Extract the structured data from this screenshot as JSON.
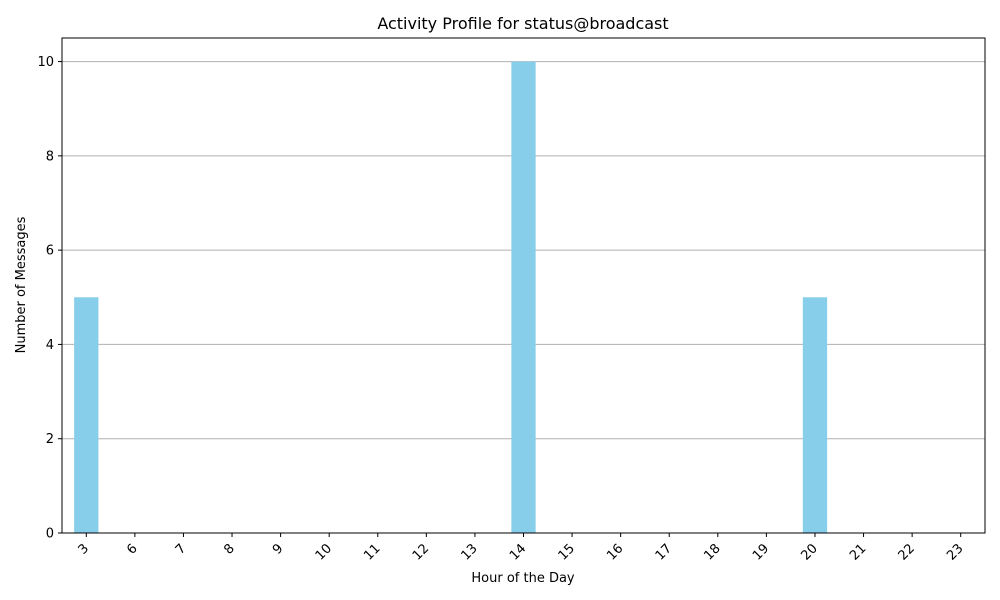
{
  "chart_data": {
    "type": "bar",
    "title": "Activity Profile for status@broadcast",
    "xlabel": "Hour of the Day",
    "ylabel": "Number of Messages",
    "categories": [
      "3",
      "6",
      "7",
      "8",
      "9",
      "10",
      "11",
      "12",
      "13",
      "14",
      "15",
      "16",
      "17",
      "18",
      "19",
      "20",
      "21",
      "22",
      "23"
    ],
    "values": [
      5,
      0,
      0,
      0,
      0,
      0,
      0,
      0,
      0,
      10,
      0,
      0,
      0,
      0,
      0,
      5,
      0,
      0,
      0
    ],
    "ylim": [
      0,
      10.5
    ],
    "yticks": [
      0,
      2,
      4,
      6,
      8,
      10
    ],
    "grid": "y-axis",
    "bar_color": "#87ceeb",
    "xtick_rotation": 45
  }
}
